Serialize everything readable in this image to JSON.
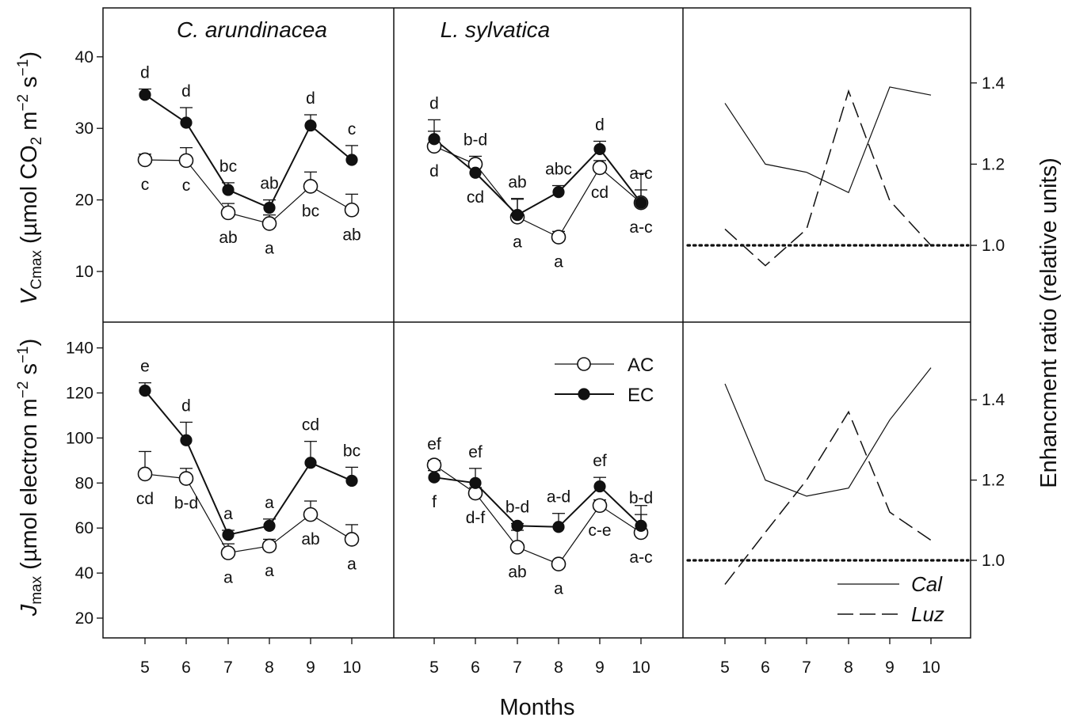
{
  "chart_data": [
    {
      "type": "line",
      "title": "C. arundinacea",
      "ylabel": "V_Cmax (µmol CO2 m−2 s−1)",
      "ylabel_parts": {
        "main": "V",
        "sub": "Cmax",
        "unit_pre": " (µmol CO",
        "unit_sub": "2",
        "unit_mid": " m",
        "sup1": "−2",
        "unit_mid2": " s",
        "sup2": "−1",
        "unit_post": ")"
      },
      "ylim": [
        0,
        45
      ],
      "yticks": [
        "10",
        "20",
        "30",
        "40"
      ],
      "x": [
        5,
        6,
        7,
        8,
        9,
        10
      ],
      "series": [
        {
          "name": "AC",
          "values": [
            25.6,
            25.5,
            18.2,
            16.7,
            21.9,
            18.6
          ],
          "errors": [
            0.8,
            1.8,
            1.3,
            1.2,
            2.0,
            2.2
          ],
          "letters": [
            "c",
            "c",
            "ab",
            "a",
            "bc",
            "ab"
          ]
        },
        {
          "name": "EC",
          "values": [
            34.7,
            30.8,
            21.4,
            18.9,
            30.4,
            25.6
          ],
          "errors": [
            0.8,
            2.1,
            1.0,
            1.1,
            1.5,
            2.0
          ],
          "letters": [
            "d",
            "d",
            "bc",
            "ab",
            "d",
            "c"
          ]
        }
      ]
    },
    {
      "type": "line",
      "title": "L. sylvatica",
      "ylim": [
        0,
        45
      ],
      "x": [
        5,
        6,
        7,
        8,
        9,
        10
      ],
      "series": [
        {
          "name": "AC",
          "values": [
            27.5,
            25.0,
            17.6,
            14.8,
            24.5,
            19.6
          ],
          "errors": [
            2.1,
            1.1,
            2.5,
            0.8,
            1.0,
            4.1
          ],
          "letters": [
            "d",
            "b-d",
            "a",
            "a",
            "cd",
            "a-c"
          ]
        },
        {
          "name": "EC",
          "values": [
            28.5,
            23.8,
            17.9,
            21.1,
            27.1,
            19.6
          ],
          "errors": [
            2.7,
            1.1,
            2.3,
            0.9,
            1.1,
            1.8
          ],
          "letters": [
            "d",
            "cd",
            "ab",
            "abc",
            "d",
            "a-c"
          ]
        }
      ]
    },
    {
      "type": "line",
      "ylabel": "Enhancment ratio (relative units)",
      "ylim": [
        0.8,
        1.52
      ],
      "yticks": [
        "1.0",
        "1.2",
        "1.4"
      ],
      "x": [
        5,
        6,
        7,
        8,
        9,
        10
      ],
      "reference_line": 1.0,
      "series": [
        {
          "name": "Cal",
          "style": "solid",
          "values": [
            1.35,
            1.2,
            1.18,
            1.13,
            1.39,
            1.37
          ]
        },
        {
          "name": "Luz",
          "style": "dashed",
          "values": [
            1.04,
            0.95,
            1.04,
            1.38,
            1.11,
            1.0
          ]
        }
      ]
    },
    {
      "type": "line",
      "ylabel": "J_max (µmol electron m−2 s−1)",
      "ylabel_parts": {
        "main": "J",
        "sub": "max",
        "unit_pre": " (µmol electron m",
        "sup1": "−2",
        "unit_mid2": " s",
        "sup2": "−1",
        "unit_post": ")"
      },
      "ylim": [
        10,
        150
      ],
      "yticks": [
        "20",
        "40",
        "60",
        "80",
        "100",
        "120",
        "140"
      ],
      "x": [
        5,
        6,
        7,
        8,
        9,
        10
      ],
      "xticks": [
        "5",
        "6",
        "7",
        "8",
        "9",
        "10"
      ],
      "series": [
        {
          "name": "AC",
          "values": [
            84,
            82,
            49,
            52,
            66,
            55
          ],
          "errors": [
            10,
            4.5,
            4,
            3,
            6,
            6.5
          ],
          "letters": [
            "cd",
            "b-d",
            "a",
            "a",
            "ab",
            "a"
          ]
        },
        {
          "name": "EC",
          "values": [
            121,
            99,
            57,
            61,
            89,
            81
          ],
          "errors": [
            3.5,
            8,
            2,
            3,
            9.5,
            6
          ],
          "letters": [
            "e",
            "d",
            "a",
            "a",
            "cd",
            "bc"
          ]
        }
      ]
    },
    {
      "type": "line",
      "ylim": [
        10,
        150
      ],
      "x": [
        5,
        6,
        7,
        8,
        9,
        10
      ],
      "xticks": [
        "5",
        "6",
        "7",
        "8",
        "9",
        "10"
      ],
      "legend": [
        {
          "label": "AC",
          "marker": "open-circle"
        },
        {
          "label": "EC",
          "marker": "filled-circle"
        }
      ],
      "series": [
        {
          "name": "AC",
          "values": [
            88,
            75.5,
            51.5,
            44,
            70,
            58
          ],
          "errors": [
            2,
            2.5,
            7.5,
            1,
            2.5,
            12
          ],
          "letters": [
            "ef",
            "d-f",
            "ab",
            "a",
            "c-e",
            "a-c"
          ]
        },
        {
          "name": "EC",
          "values": [
            82.5,
            80,
            61,
            60.5,
            78.5,
            61
          ],
          "errors": [
            3,
            6.5,
            1,
            6,
            4,
            5
          ],
          "letters": [
            "f",
            "ef",
            "b-d",
            "a-d",
            "ef",
            "b-d"
          ]
        }
      ]
    },
    {
      "type": "line",
      "ylim": [
        0.8,
        1.52
      ],
      "yticks": [
        "1.0",
        "1.2",
        "1.4"
      ],
      "x": [
        5,
        6,
        7,
        8,
        9,
        10
      ],
      "xticks": [
        "5",
        "6",
        "7",
        "8",
        "9",
        "10"
      ],
      "reference_line": 1.0,
      "legend": [
        {
          "label": "Cal",
          "style": "solid"
        },
        {
          "label": "Luz",
          "style": "dashed"
        }
      ],
      "series": [
        {
          "name": "Cal",
          "style": "solid",
          "values": [
            1.44,
            1.2,
            1.16,
            1.18,
            1.35,
            1.48
          ]
        },
        {
          "name": "Luz",
          "style": "dashed",
          "values": [
            0.94,
            1.07,
            1.2,
            1.37,
            1.12,
            1.05
          ]
        }
      ]
    }
  ],
  "xlabel": "Months",
  "colors": {
    "ink": "#111111",
    "open_fill": "#ffffff"
  }
}
